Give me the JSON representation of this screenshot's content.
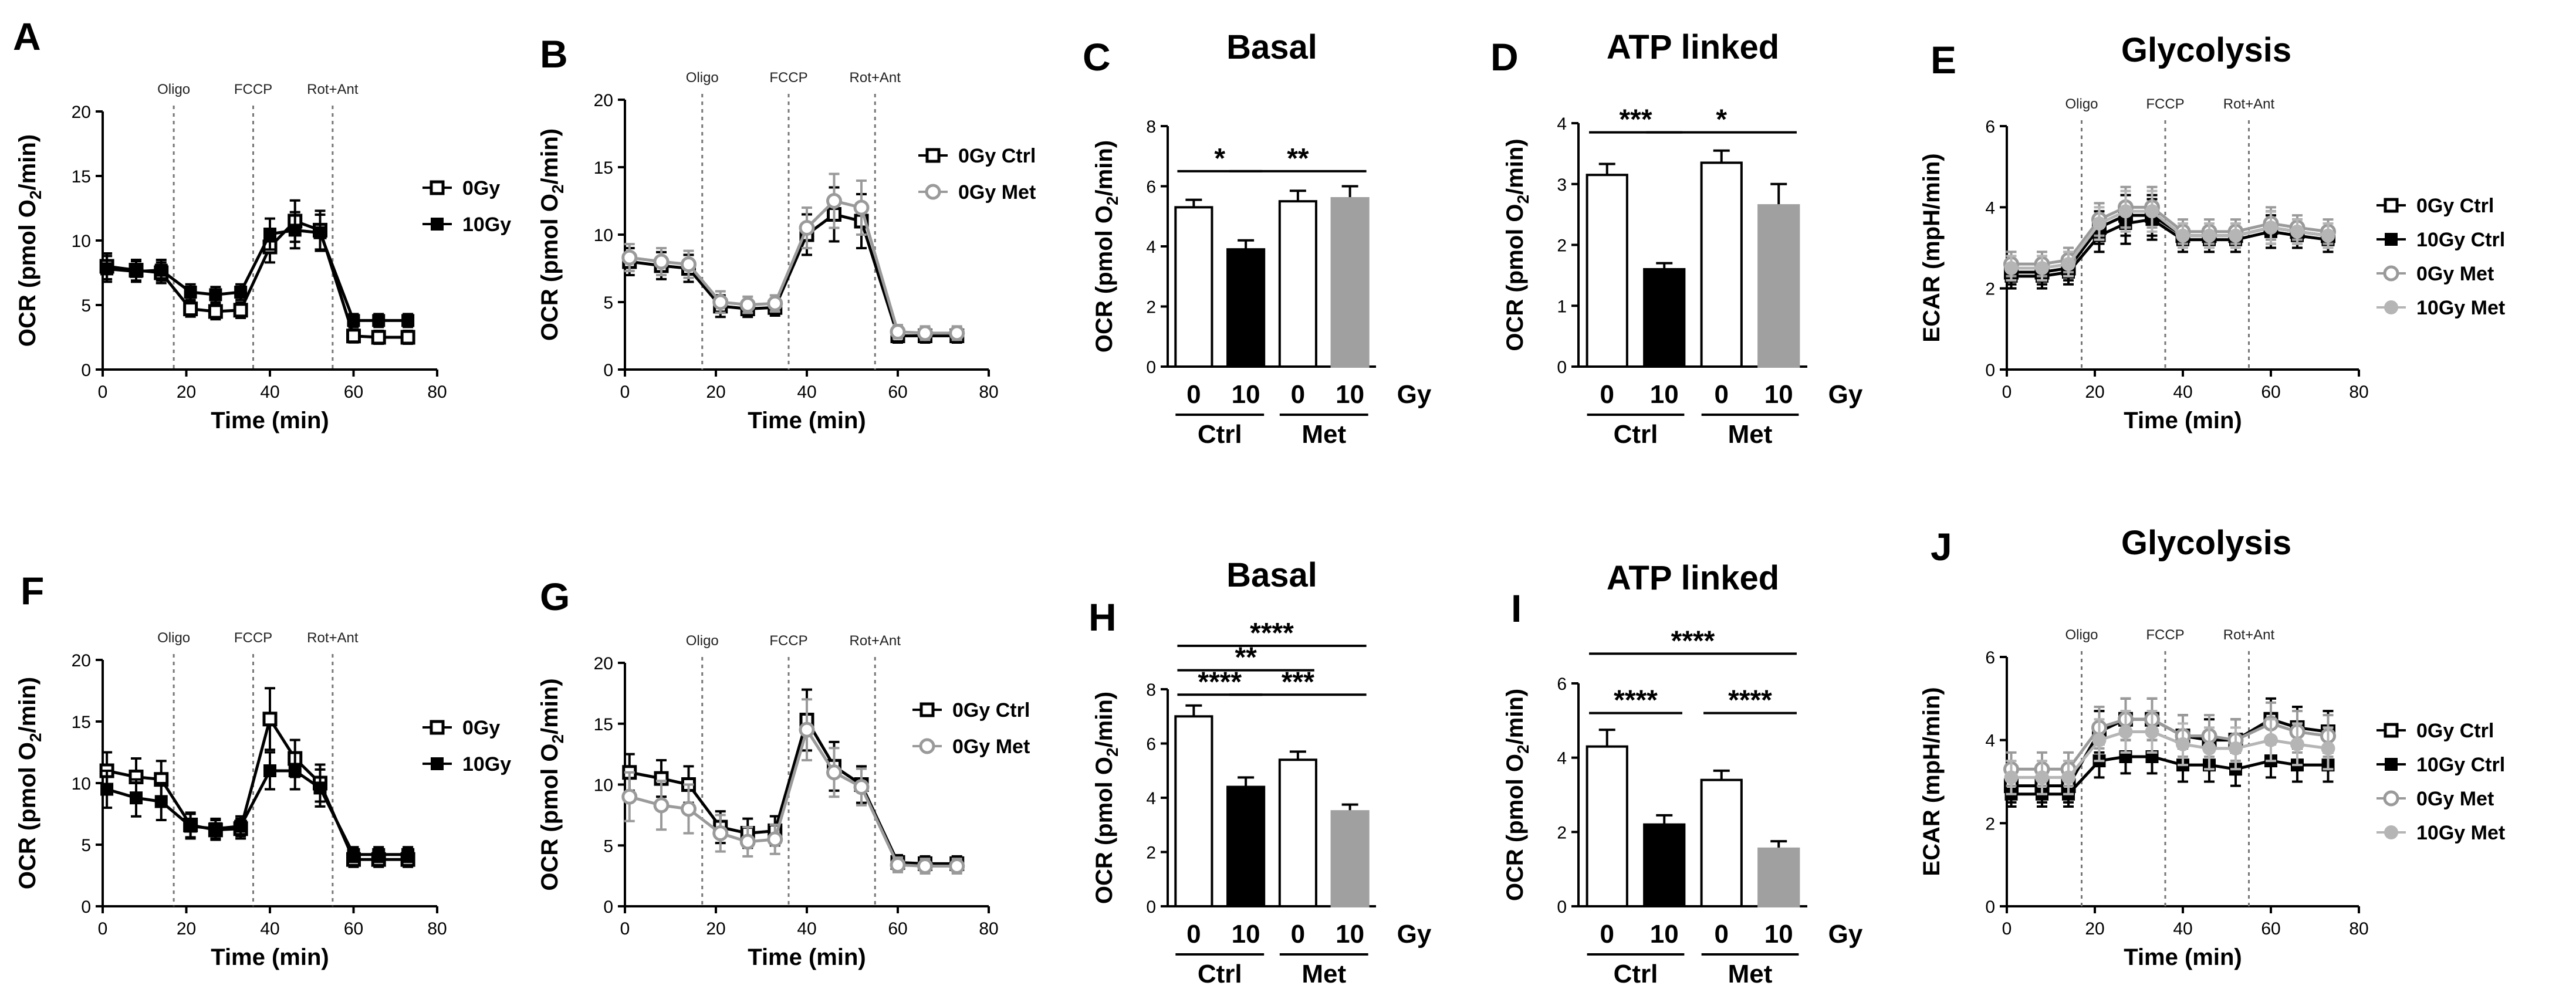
{
  "chart_data": [
    {
      "id": "A",
      "type": "line",
      "label": "A",
      "title": "",
      "xlabel": "Time (min)",
      "ylabel": "OCR (pmol O2/min)",
      "xlim": [
        0,
        80
      ],
      "ylim": [
        0,
        20
      ],
      "xticks": [
        "0",
        "20",
        "40",
        "60",
        "80"
      ],
      "yticks": [
        "0",
        "5",
        "10",
        "15",
        "20"
      ],
      "events": [
        {
          "name": "Oligo",
          "x": 17
        },
        {
          "name": "FCCP",
          "x": 36
        },
        {
          "name": "Rot+Ant",
          "x": 55
        }
      ],
      "x": [
        1,
        8,
        14,
        21,
        27,
        33,
        40,
        46,
        52,
        60,
        66,
        73
      ],
      "series": [
        {
          "name": "0Gy",
          "marker": "open",
          "color": "#000000",
          "values": [
            8,
            7.7,
            7.5,
            4.7,
            4.5,
            4.6,
            9.5,
            11.5,
            10.8,
            2.6,
            2.5,
            2.5
          ],
          "errors": [
            1,
            0.8,
            0.8,
            0.6,
            0.6,
            0.6,
            1.2,
            1.6,
            1.5,
            0.5,
            0.5,
            0.5
          ]
        },
        {
          "name": "10Gy",
          "marker": "filled",
          "color": "#000000",
          "values": [
            7.8,
            7.6,
            7.7,
            6,
            5.8,
            6,
            10.5,
            10.8,
            10.6,
            3.8,
            3.8,
            3.8
          ],
          "errors": [
            1,
            0.8,
            0.8,
            0.6,
            0.6,
            0.6,
            1.2,
            1.4,
            1.4,
            0.5,
            0.5,
            0.5
          ]
        }
      ]
    },
    {
      "id": "B",
      "type": "line",
      "label": "B",
      "title": "",
      "xlabel": "Time (min)",
      "ylabel": "OCR (pmol O2/min)",
      "xlim": [
        0,
        80
      ],
      "ylim": [
        0,
        20
      ],
      "xticks": [
        "0",
        "20",
        "40",
        "60",
        "80"
      ],
      "yticks": [
        "0",
        "5",
        "10",
        "15",
        "20"
      ],
      "events": [
        {
          "name": "Oligo",
          "x": 17
        },
        {
          "name": "FCCP",
          "x": 36
        },
        {
          "name": "Rot+Ant",
          "x": 55
        }
      ],
      "x": [
        1,
        8,
        14,
        21,
        27,
        33,
        40,
        46,
        52,
        60,
        66,
        73
      ],
      "series": [
        {
          "name": "0Gy Ctrl",
          "marker": "open-square",
          "color": "#000000",
          "values": [
            8,
            7.7,
            7.5,
            4.7,
            4.5,
            4.6,
            10,
            11.5,
            11,
            2.5,
            2.5,
            2.5
          ],
          "errors": [
            1,
            1,
            1,
            0.8,
            0.6,
            0.6,
            1.5,
            2,
            2,
            0.5,
            0.5,
            0.5
          ]
        },
        {
          "name": "0Gy Met",
          "marker": "grey",
          "color": "#9a9a9a",
          "values": [
            8.3,
            8,
            7.8,
            5,
            4.8,
            4.9,
            10.5,
            12.5,
            12,
            2.8,
            2.7,
            2.7
          ],
          "errors": [
            1,
            1,
            1,
            0.8,
            0.6,
            0.6,
            1.5,
            2,
            2,
            0.5,
            0.5,
            0.5
          ]
        }
      ]
    },
    {
      "id": "C",
      "type": "bar",
      "label": "C",
      "title": "Basal",
      "ylabel": "OCR (pmol O2/min)",
      "ylim": [
        0,
        8
      ],
      "yticks": [
        "0",
        "2",
        "4",
        "6",
        "8"
      ],
      "categories": [
        "0",
        "10",
        "0",
        "10"
      ],
      "groups": [
        "Ctrl",
        "Met"
      ],
      "unit": "Gy",
      "values": [
        5.3,
        3.9,
        5.5,
        5.6
      ],
      "errors": [
        0.25,
        0.3,
        0.35,
        0.4
      ],
      "colors": [
        "#ffffff",
        "#000000",
        "#ffffff",
        "#a0a0a0"
      ],
      "significance": [
        {
          "from": 0,
          "to": 1,
          "label": "*",
          "y": 6.5
        },
        {
          "from": 1,
          "to": 3,
          "label": "**",
          "y": 6.5
        }
      ]
    },
    {
      "id": "D",
      "type": "bar",
      "label": "D",
      "title": "ATP linked",
      "ylabel": "OCR (pmol O2/min)",
      "ylim": [
        0,
        4
      ],
      "yticks": [
        "0",
        "1",
        "2",
        "3",
        "4"
      ],
      "categories": [
        "0",
        "10",
        "0",
        "10"
      ],
      "groups": [
        "Ctrl",
        "Met"
      ],
      "unit": "Gy",
      "values": [
        3.15,
        1.6,
        3.35,
        2.65
      ],
      "errors": [
        0.18,
        0.1,
        0.2,
        0.35
      ],
      "colors": [
        "#ffffff",
        "#000000",
        "#ffffff",
        "#a0a0a0"
      ],
      "significance": [
        {
          "from": 0,
          "to": 1,
          "label": "***",
          "y": 3.85
        },
        {
          "from": 1,
          "to": 3,
          "label": "*",
          "y": 3.85
        }
      ]
    },
    {
      "id": "E",
      "type": "line",
      "label": "E",
      "title": "Glycolysis",
      "xlabel": "Time (min)",
      "ylabel": "ECAR (mpH/min)",
      "xlim": [
        0,
        80
      ],
      "ylim": [
        0,
        6
      ],
      "xticks": [
        "0",
        "20",
        "40",
        "60",
        "80"
      ],
      "yticks": [
        "0",
        "2",
        "4",
        "6"
      ],
      "events": [
        {
          "name": "Oligo",
          "x": 17
        },
        {
          "name": "FCCP",
          "x": 36
        },
        {
          "name": "Rot+Ant",
          "x": 55
        }
      ],
      "x": [
        1,
        8,
        14,
        21,
        27,
        33,
        40,
        46,
        52,
        60,
        66,
        73
      ],
      "series": [
        {
          "name": "0Gy Ctrl",
          "marker": "open-square",
          "color": "#000000",
          "values": [
            2.4,
            2.4,
            2.5,
            3.5,
            3.8,
            3.8,
            3.3,
            3.3,
            3.3,
            3.5,
            3.4,
            3.3
          ],
          "errors": [
            0.3,
            0.3,
            0.3,
            0.4,
            0.5,
            0.5,
            0.3,
            0.3,
            0.3,
            0.4,
            0.3,
            0.3
          ]
        },
        {
          "name": "10Gy Ctrl",
          "marker": "filled",
          "color": "#000000",
          "values": [
            2.3,
            2.3,
            2.4,
            3.3,
            3.6,
            3.7,
            3.2,
            3.2,
            3.2,
            3.4,
            3.3,
            3.2
          ],
          "errors": [
            0.3,
            0.3,
            0.3,
            0.4,
            0.5,
            0.5,
            0.3,
            0.3,
            0.3,
            0.4,
            0.3,
            0.3
          ]
        },
        {
          "name": "0Gy Met",
          "marker": "grey",
          "color": "#9a9a9a",
          "values": [
            2.6,
            2.6,
            2.7,
            3.7,
            4,
            4,
            3.4,
            3.4,
            3.4,
            3.6,
            3.5,
            3.4
          ],
          "errors": [
            0.3,
            0.3,
            0.3,
            0.4,
            0.5,
            0.5,
            0.3,
            0.3,
            0.3,
            0.4,
            0.3,
            0.3
          ]
        },
        {
          "name": "10Gy Met",
          "marker": "grey-filled",
          "color": "#b5b5b5",
          "values": [
            2.5,
            2.5,
            2.6,
            3.6,
            3.9,
            3.9,
            3.3,
            3.3,
            3.3,
            3.5,
            3.4,
            3.3
          ],
          "errors": [
            0.3,
            0.3,
            0.3,
            0.4,
            0.5,
            0.5,
            0.3,
            0.3,
            0.3,
            0.4,
            0.3,
            0.3
          ]
        }
      ]
    },
    {
      "id": "F",
      "type": "line",
      "label": "F",
      "title": "",
      "xlabel": "Time (min)",
      "ylabel": "OCR (pmol O2/min)",
      "xlim": [
        0,
        80
      ],
      "ylim": [
        0,
        20
      ],
      "xticks": [
        "0",
        "20",
        "40",
        "60",
        "80"
      ],
      "yticks": [
        "0",
        "5",
        "10",
        "15",
        "20"
      ],
      "events": [
        {
          "name": "Oligo",
          "x": 17
        },
        {
          "name": "FCCP",
          "x": 36
        },
        {
          "name": "Rot+Ant",
          "x": 55
        }
      ],
      "x": [
        1,
        8,
        14,
        21,
        27,
        33,
        40,
        46,
        52,
        60,
        66,
        73
      ],
      "series": [
        {
          "name": "0Gy",
          "marker": "open",
          "color": "#000000",
          "values": [
            11,
            10.5,
            10.3,
            6.6,
            6.2,
            6.3,
            15.2,
            12,
            10,
            3.8,
            3.8,
            3.8
          ],
          "errors": [
            1.5,
            1.5,
            1.5,
            1,
            0.8,
            0.8,
            2.5,
            1.5,
            1.5,
            0.6,
            0.6,
            0.6
          ]
        },
        {
          "name": "10Gy",
          "marker": "filled",
          "color": "#000000",
          "values": [
            9.5,
            8.8,
            8.5,
            6.5,
            6.3,
            6.5,
            11,
            11,
            9.6,
            4.2,
            4.2,
            4.2
          ],
          "errors": [
            1.5,
            1.5,
            1.5,
            1,
            0.8,
            0.8,
            1.5,
            1.5,
            1.5,
            0.6,
            0.6,
            0.6
          ]
        }
      ]
    },
    {
      "id": "G",
      "type": "line",
      "label": "G",
      "title": "",
      "xlabel": "Time (min)",
      "ylabel": "OCR (pmol O2/min)",
      "xlim": [
        0,
        80
      ],
      "ylim": [
        0,
        20
      ],
      "xticks": [
        "0",
        "20",
        "40",
        "60",
        "80"
      ],
      "yticks": [
        "0",
        "5",
        "10",
        "15",
        "20"
      ],
      "events": [
        {
          "name": "Oligo",
          "x": 17
        },
        {
          "name": "FCCP",
          "x": 36
        },
        {
          "name": "Rot+Ant",
          "x": 55
        }
      ],
      "x": [
        1,
        8,
        14,
        21,
        27,
        33,
        40,
        46,
        52,
        60,
        66,
        73
      ],
      "series": [
        {
          "name": "0Gy Ctrl",
          "marker": "open-square",
          "color": "#000000",
          "values": [
            11,
            10.5,
            10,
            6.5,
            6,
            6.2,
            15.3,
            11.5,
            10,
            3.6,
            3.5,
            3.5
          ],
          "errors": [
            1.5,
            1.5,
            1.5,
            1.3,
            1.2,
            1.2,
            2.5,
            2,
            1.5,
            0.6,
            0.6,
            0.6
          ]
        },
        {
          "name": "0Gy Met",
          "marker": "grey",
          "color": "#9a9a9a",
          "values": [
            9,
            8.3,
            8,
            6,
            5.3,
            5.5,
            14.5,
            11,
            9.8,
            3.4,
            3.3,
            3.3
          ],
          "errors": [
            2,
            2,
            2,
            1.5,
            1.2,
            1.2,
            2.5,
            2,
            1.5,
            0.6,
            0.6,
            0.6
          ]
        }
      ]
    },
    {
      "id": "H",
      "type": "bar",
      "label": "H",
      "title": "Basal",
      "ylabel": "OCR (pmol O2/min)",
      "ylim": [
        0,
        8
      ],
      "yticks": [
        "0",
        "2",
        "4",
        "6",
        "8"
      ],
      "categories": [
        "0",
        "10",
        "0",
        "10"
      ],
      "groups": [
        "Ctrl",
        "Met"
      ],
      "unit": "Gy",
      "values": [
        7,
        4.4,
        5.4,
        3.5
      ],
      "errors": [
        0.4,
        0.35,
        0.3,
        0.25
      ],
      "colors": [
        "#ffffff",
        "#000000",
        "#ffffff",
        "#a0a0a0"
      ],
      "significance": [
        {
          "from": 0,
          "to": 3,
          "label": "****",
          "y": 9.6
        },
        {
          "from": 0,
          "to": 2,
          "label": "**",
          "y": 8.7
        },
        {
          "from": 0,
          "to": 1,
          "label": "****",
          "y": 7.8
        },
        {
          "from": 1,
          "to": 3,
          "label": "***",
          "y": 7.8
        }
      ]
    },
    {
      "id": "I",
      "type": "bar",
      "label": "I",
      "title": "ATP linked",
      "ylabel": "OCR (pmol O2/min)",
      "ylim": [
        0,
        6
      ],
      "yticks": [
        "0",
        "2",
        "4",
        "6"
      ],
      "categories": [
        "0",
        "10",
        "0",
        "10"
      ],
      "groups": [
        "Ctrl",
        "Met"
      ],
      "unit": "Gy",
      "values": [
        4.3,
        2.2,
        3.4,
        1.55
      ],
      "errors": [
        0.45,
        0.25,
        0.25,
        0.2
      ],
      "colors": [
        "#ffffff",
        "#000000",
        "#ffffff",
        "#a0a0a0"
      ],
      "significance": [
        {
          "from": 0,
          "to": 3,
          "label": "****",
          "y": 6.8
        },
        {
          "from": 0,
          "to": 1,
          "label": "****",
          "y": 5.2
        },
        {
          "from": 2,
          "to": 3,
          "label": "****",
          "y": 5.2
        }
      ]
    },
    {
      "id": "J",
      "type": "line",
      "label": "J",
      "title": "Glycolysis",
      "xlabel": "Time (min)",
      "ylabel": "ECAR (mpH/min)",
      "xlim": [
        0,
        80
      ],
      "ylim": [
        0,
        6
      ],
      "xticks": [
        "0",
        "20",
        "40",
        "60",
        "80"
      ],
      "yticks": [
        "0",
        "2",
        "4",
        "6"
      ],
      "events": [
        {
          "name": "Oligo",
          "x": 17
        },
        {
          "name": "FCCP",
          "x": 36
        },
        {
          "name": "Rot+Ant",
          "x": 55
        }
      ],
      "x": [
        1,
        8,
        14,
        21,
        27,
        33,
        40,
        46,
        52,
        60,
        66,
        73
      ],
      "series": [
        {
          "name": "0Gy Ctrl",
          "marker": "open-square",
          "color": "#000000",
          "values": [
            2.9,
            2.9,
            2.9,
            4.2,
            4.5,
            4.5,
            4.1,
            4,
            4,
            4.5,
            4.3,
            4.2
          ],
          "errors": [
            0.4,
            0.4,
            0.4,
            0.5,
            0.5,
            0.5,
            0.5,
            0.5,
            0.5,
            0.5,
            0.5,
            0.5
          ]
        },
        {
          "name": "10Gy Ctrl",
          "marker": "filled",
          "color": "#000000",
          "values": [
            2.7,
            2.7,
            2.7,
            3.5,
            3.6,
            3.6,
            3.4,
            3.4,
            3.3,
            3.5,
            3.4,
            3.4
          ],
          "errors": [
            0.3,
            0.3,
            0.3,
            0.4,
            0.4,
            0.4,
            0.4,
            0.4,
            0.4,
            0.4,
            0.4,
            0.4
          ]
        },
        {
          "name": "0Gy Met",
          "marker": "grey",
          "color": "#9a9a9a",
          "values": [
            3.3,
            3.3,
            3.3,
            4.3,
            4.5,
            4.5,
            4.1,
            4.1,
            4,
            4.4,
            4.2,
            4.1
          ],
          "errors": [
            0.4,
            0.4,
            0.4,
            0.5,
            0.5,
            0.5,
            0.5,
            0.5,
            0.5,
            0.5,
            0.5,
            0.5
          ]
        },
        {
          "name": "10Gy Met",
          "marker": "grey-filled",
          "color": "#b5b5b5",
          "values": [
            3.1,
            3.1,
            3.1,
            4,
            4.2,
            4.2,
            3.9,
            3.8,
            3.8,
            4,
            3.9,
            3.8
          ],
          "errors": [
            0.4,
            0.4,
            0.4,
            0.5,
            0.5,
            0.5,
            0.5,
            0.5,
            0.5,
            0.5,
            0.5,
            0.5
          ]
        }
      ]
    }
  ]
}
